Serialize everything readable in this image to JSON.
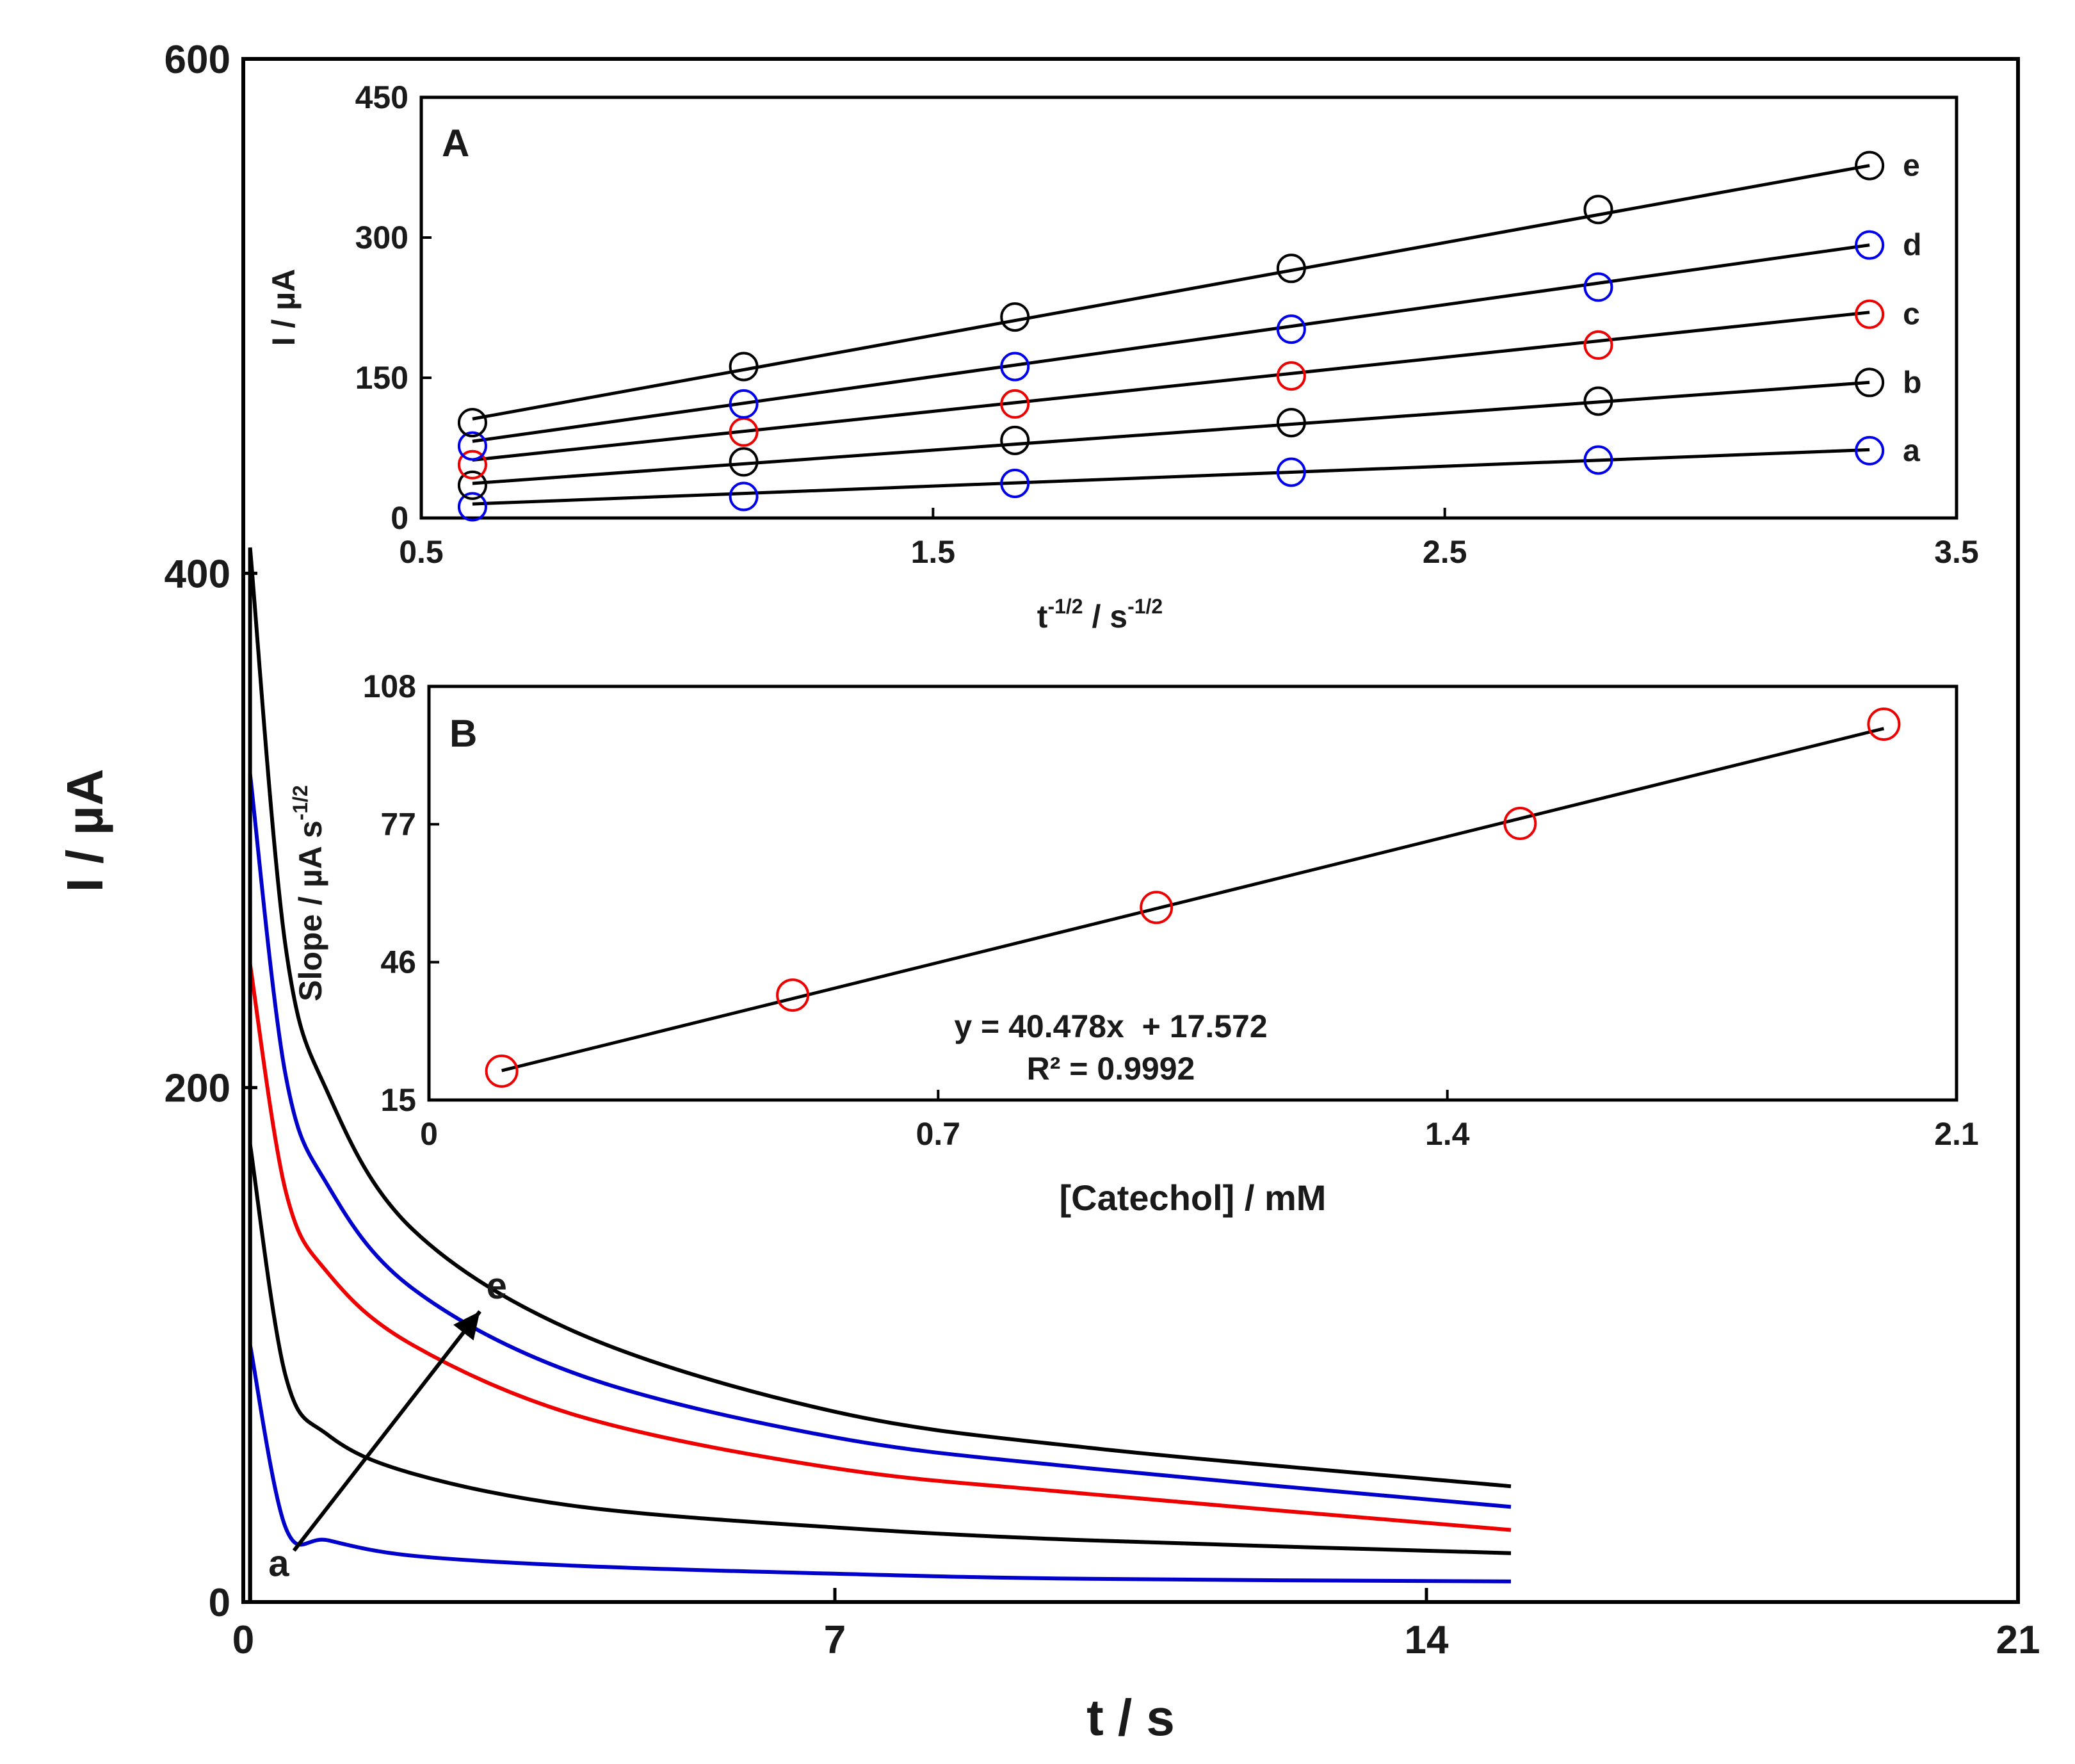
{
  "chart_data": [
    {
      "id": "main",
      "type": "line",
      "title": "",
      "xlabel": "t / s",
      "ylabel": "I / µA",
      "xlim": [
        0,
        21
      ],
      "ylim": [
        0,
        600
      ],
      "xticks": [
        0,
        7,
        14,
        21
      ],
      "yticks": [
        0,
        200,
        400,
        600
      ],
      "series": [
        {
          "name": "a",
          "color": "#0000cc",
          "t_start": 0.08,
          "t_end": 15,
          "values": [
            [
              0.08,
              100
            ],
            [
              0.5,
              29
            ],
            [
              1,
              24
            ],
            [
              2,
              18
            ],
            [
              4,
              14
            ],
            [
              7,
              11
            ],
            [
              10,
              9
            ],
            [
              15,
              8
            ]
          ]
        },
        {
          "name": "b",
          "color": "#000000",
          "t_start": 0.08,
          "t_end": 15,
          "values": [
            [
              0.08,
              178
            ],
            [
              0.5,
              88
            ],
            [
              1,
              65
            ],
            [
              2,
              50
            ],
            [
              4,
              37
            ],
            [
              7,
              29
            ],
            [
              10,
              24
            ],
            [
              15,
              19
            ]
          ]
        },
        {
          "name": "c",
          "color": "#ee0000",
          "t_start": 0.08,
          "t_end": 15,
          "values": [
            [
              0.08,
              248
            ],
            [
              0.5,
              160
            ],
            [
              1,
              128
            ],
            [
              2,
              100
            ],
            [
              4,
              72
            ],
            [
              7,
              52
            ],
            [
              10,
              42
            ],
            [
              15,
              28
            ]
          ]
        },
        {
          "name": "d",
          "color": "#0000cc",
          "t_start": 0.08,
          "t_end": 15,
          "values": [
            [
              0.08,
              322
            ],
            [
              0.5,
              205
            ],
            [
              1,
              162
            ],
            [
              2,
              122
            ],
            [
              4,
              88
            ],
            [
              7,
              64
            ],
            [
              10,
              52
            ],
            [
              15,
              37
            ]
          ]
        },
        {
          "name": "e",
          "color": "#000000",
          "t_start": 0.08,
          "t_end": 15,
          "values": [
            [
              0.08,
              410
            ],
            [
              0.5,
              255
            ],
            [
              1,
              198
            ],
            [
              2,
              145
            ],
            [
              4,
              104
            ],
            [
              7,
              74
            ],
            [
              10,
              60
            ],
            [
              15,
              45
            ]
          ]
        }
      ],
      "annotations": {
        "arrow_from": {
          "t": 0.6,
          "I": 20
        },
        "arrow_to": {
          "t": 2.8,
          "I": 113
        },
        "start_label": "a",
        "end_label": "e"
      }
    },
    {
      "id": "inset_A",
      "type": "scatter",
      "panel_label": "A",
      "xlabel_base": "t",
      "xlabel_sup1": "-1/2",
      "xlabel_mid": " / s",
      "xlabel_sup2": "-1/2",
      "ylabel": "I / µA",
      "xlim": [
        0.5,
        3.5
      ],
      "ylim": [
        0,
        450
      ],
      "xticks": [
        "0.5",
        "1.5",
        "2.5",
        "3.5"
      ],
      "yticks": [
        "0",
        "150",
        "300",
        "450"
      ],
      "x": [
        0.6,
        1.13,
        1.66,
        2.2,
        2.8,
        3.33
      ],
      "series": [
        {
          "name": "a",
          "fit": [
            15,
            73
          ],
          "points": [
            {
              "y": 12,
              "color": "#0000ee"
            },
            {
              "y": 23,
              "color": "#0000ee"
            },
            {
              "y": 37,
              "color": "#0000ee"
            },
            {
              "y": 49,
              "color": "#0000ee"
            },
            {
              "y": 62,
              "color": "#0000ee"
            },
            {
              "y": 72,
              "color": "#0000ee"
            }
          ]
        },
        {
          "name": "b",
          "fit": [
            37,
            145
          ],
          "points": [
            {
              "y": 35,
              "color": "#000000"
            },
            {
              "y": 60,
              "color": "#000000"
            },
            {
              "y": 83,
              "color": "#000000"
            },
            {
              "y": 102,
              "color": "#000000"
            },
            {
              "y": 125,
              "color": "#000000"
            },
            {
              "y": 145,
              "color": "#000000"
            }
          ]
        },
        {
          "name": "c",
          "fit": [
            62,
            220
          ],
          "points": [
            {
              "y": 57,
              "color": "#ee0000"
            },
            {
              "y": 92,
              "color": "#ee0000"
            },
            {
              "y": 122,
              "color": "#ee0000"
            },
            {
              "y": 152,
              "color": "#ee0000"
            },
            {
              "y": 185,
              "color": "#ee0000"
            },
            {
              "y": 218,
              "color": "#ee0000"
            }
          ]
        },
        {
          "name": "d",
          "fit": [
            82,
            292
          ],
          "points": [
            {
              "y": 77,
              "color": "#0000ee"
            },
            {
              "y": 122,
              "color": "#0000ee"
            },
            {
              "y": 162,
              "color": "#0000ee"
            },
            {
              "y": 202,
              "color": "#0000ee"
            },
            {
              "y": 247,
              "color": "#0000ee"
            },
            {
              "y": 292,
              "color": "#0000ee"
            }
          ]
        },
        {
          "name": "e",
          "fit": [
            106,
            377
          ],
          "points": [
            {
              "y": 102,
              "color": "#000000"
            },
            {
              "y": 162,
              "color": "#000000"
            },
            {
              "y": 215,
              "color": "#000000"
            },
            {
              "y": 267,
              "color": "#000000"
            },
            {
              "y": 330,
              "color": "#000000"
            },
            {
              "y": 377,
              "color": "#000000"
            }
          ]
        }
      ]
    },
    {
      "id": "inset_B",
      "type": "scatter",
      "panel_label": "B",
      "xlabel": "[Catechol] / mM",
      "ylabel_base": "Slope / µA s",
      "ylabel_sup": "-1/2",
      "xlim": [
        0,
        2.1
      ],
      "ylim": [
        15,
        108
      ],
      "xticks": [
        "0",
        "0.7",
        "1.4",
        "2.1"
      ],
      "yticks": [
        "15",
        "46",
        "77",
        "108"
      ],
      "x": [
        0.1,
        0.5,
        1.0,
        1.5,
        2.0
      ],
      "y": [
        21.5,
        38.6,
        58.3,
        77.2,
        99.5
      ],
      "fit": {
        "slope": 40.478,
        "intercept": 17.572
      },
      "equation": "y = 40.478x  + 17.572",
      "r2": "R² = 0.9992"
    }
  ]
}
